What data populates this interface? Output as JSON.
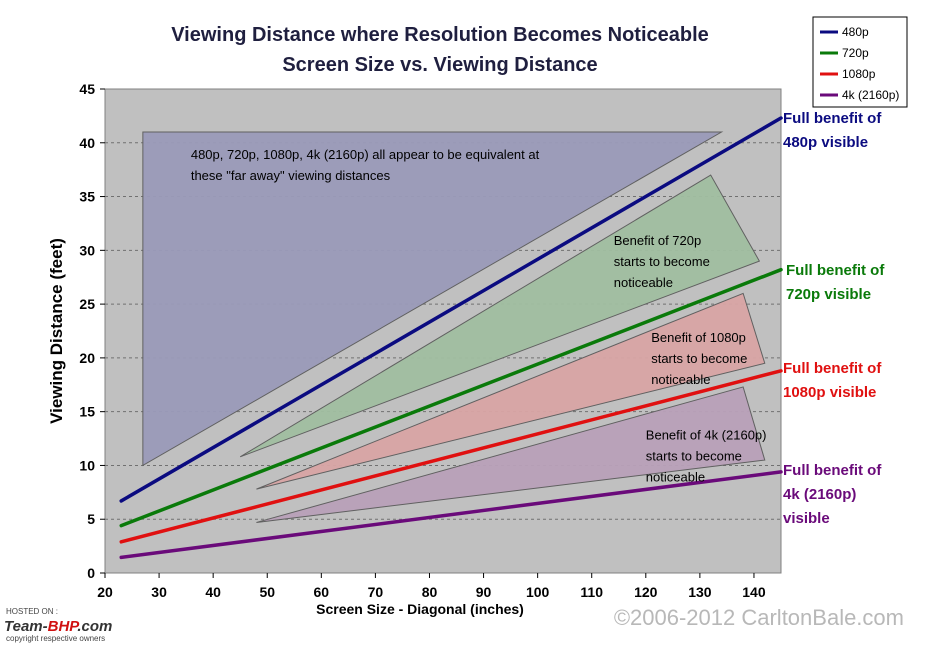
{
  "chart_data": {
    "type": "line",
    "title_lines": [
      "Viewing Distance where Resolution Becomes Noticeable",
      "Screen Size vs. Viewing Distance"
    ],
    "xlabel": "Screen Size - Diagonal (inches)",
    "ylabel": "Viewing Distance (feet)",
    "xlim": [
      20,
      145
    ],
    "ylim": [
      0,
      45
    ],
    "xticks": [
      20,
      30,
      40,
      50,
      60,
      70,
      80,
      90,
      100,
      110,
      120,
      130,
      140
    ],
    "yticks": [
      0,
      5,
      10,
      15,
      20,
      25,
      30,
      35,
      40,
      45
    ],
    "grid": "horizontal dashed",
    "legend_position": "top-right",
    "series": [
      {
        "name": "480p",
        "color": "#0b0b80",
        "x": [
          23,
          145
        ],
        "y": [
          6.7,
          42.3
        ]
      },
      {
        "name": "720p",
        "color": "#0a7a0a",
        "x": [
          23,
          145
        ],
        "y": [
          4.4,
          28.2
        ]
      },
      {
        "name": "1080p",
        "color": "#e01010",
        "x": [
          23,
          145
        ],
        "y": [
          2.9,
          18.8
        ]
      },
      {
        "name": "4k (2160p)",
        "color": "#6a0a7a",
        "x": [
          23,
          145
        ],
        "y": [
          1.45,
          9.4
        ]
      }
    ],
    "regions": [
      {
        "fill": "#9a9ab8",
        "points": [
          [
            27,
            41
          ],
          [
            134,
            41
          ],
          [
            27,
            10
          ]
        ],
        "text": [
          "480p, 720p, 1080p, 4k (2160p) all appear to be equivalent at",
          "these \"far away\" viewing distances"
        ]
      },
      {
        "fill": "#a0bea0",
        "points": [
          [
            45,
            10.8
          ],
          [
            132,
            37
          ],
          [
            141,
            29
          ]
        ],
        "text": [
          "Benefit of 720p",
          "starts to become",
          "noticeable"
        ]
      },
      {
        "fill": "#d8a4a4",
        "points": [
          [
            48,
            7.8
          ],
          [
            138,
            26
          ],
          [
            142,
            19.5
          ]
        ],
        "text": [
          "Benefit of 1080p",
          "starts to become",
          "noticeable"
        ]
      },
      {
        "fill": "#b8a0b8",
        "points": [
          [
            48,
            4.7
          ],
          [
            138,
            17.3
          ],
          [
            142,
            10.5
          ]
        ],
        "text": [
          "Benefit of 4k (2160p)",
          "starts to become",
          "noticeable"
        ]
      }
    ],
    "end_labels": [
      {
        "lines": [
          "Full benefit of",
          "480p visible"
        ],
        "color": "#0b0b80"
      },
      {
        "lines": [
          "Full benefit of",
          "720p visible"
        ],
        "color": "#0a7a0a"
      },
      {
        "lines": [
          "Full benefit of",
          "1080p visible"
        ],
        "color": "#e01010"
      },
      {
        "lines": [
          "Full benefit of",
          "4k (2160p)",
          "visible"
        ],
        "color": "#6a0a7a"
      }
    ],
    "copyright": "©2006-2012 CarltonBale.com",
    "badge": {
      "hosted": "HOSTED ON :",
      "logo_left": "Team-",
      "logo_mid": "BHP",
      "logo_right": ".com",
      "tagline": "copyright respective owners"
    }
  }
}
